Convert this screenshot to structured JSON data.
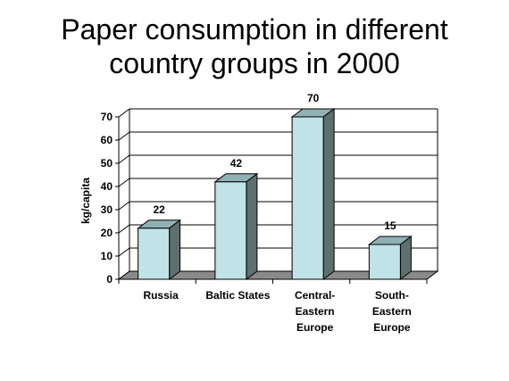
{
  "chart_data": {
    "type": "bar",
    "title_lines": [
      "Paper consumption in different",
      "country groups in 2000"
    ],
    "ylabel": "kg/capita",
    "xlabel": "",
    "categories": [
      [
        "Russia"
      ],
      [
        "Baltic States"
      ],
      [
        "Central-",
        "Eastern",
        "Europe"
      ],
      [
        "South-",
        "Eastern",
        "Europe"
      ]
    ],
    "values": [
      22,
      42,
      70,
      15
    ],
    "data_labels": [
      "22",
      "42",
      "70",
      "15"
    ],
    "ylim": [
      0,
      70
    ],
    "yticks": [
      0,
      10,
      20,
      30,
      40,
      50,
      60,
      70
    ],
    "grid": true,
    "style": "3d",
    "colors": {
      "bar_front": "#bfe3e6",
      "bar_side": "#5f6e6e",
      "bar_top": "#8fb1b3",
      "floor": "#8a8a8a",
      "grid": "#000000"
    }
  }
}
